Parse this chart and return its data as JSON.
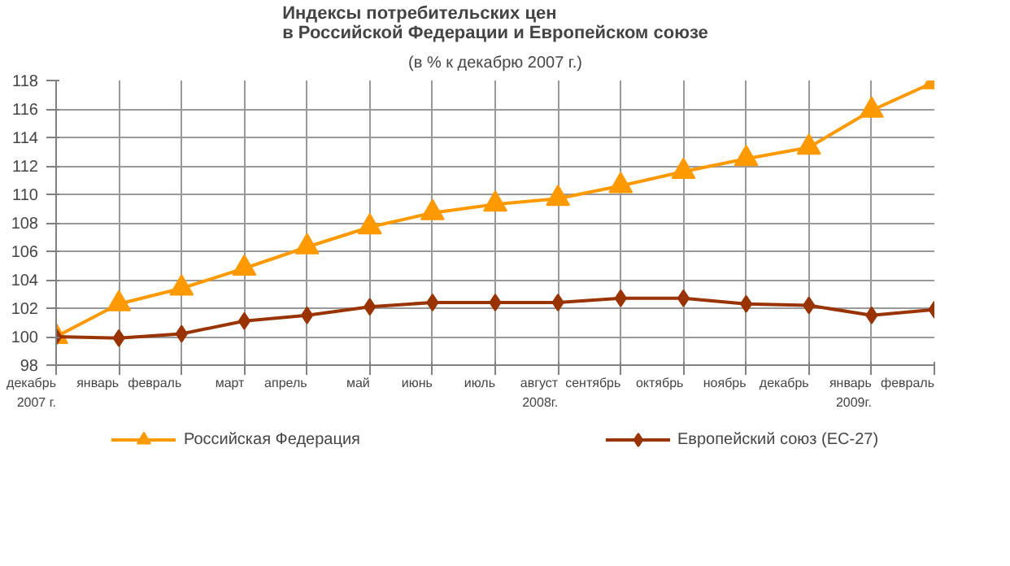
{
  "chart_data": {
    "type": "line",
    "title": "Индексы потребительских цен\nв Российской Федерации и Европейском союзе",
    "subtitle": "(в % к декабрю 2007 г.)",
    "categories": [
      "декабрь\n2007 г.",
      "январь",
      "февраль",
      "март",
      "апрель",
      "май",
      "июнь",
      "июль",
      "август\n2008г.",
      "сентябрь",
      "октябрь",
      "ноябрь",
      "декабрь",
      "январь\n2009г.",
      "февраль"
    ],
    "series": [
      {
        "name": "Российская Федерация",
        "color": "#ff9900",
        "marker": "triangle",
        "values": [
          100,
          102.3,
          103.4,
          104.8,
          106.3,
          107.7,
          108.7,
          109.3,
          109.7,
          110.6,
          111.6,
          112.5,
          113.3,
          115.9,
          117.9
        ]
      },
      {
        "name": "Европейский союз (ЕС-27)",
        "color": "#993300",
        "marker": "diamond",
        "values": [
          100,
          99.9,
          100.2,
          101.1,
          101.5,
          102.1,
          102.4,
          102.4,
          102.4,
          102.7,
          102.7,
          102.3,
          102.2,
          101.5,
          101.9
        ]
      }
    ],
    "ylim": [
      98,
      118
    ],
    "yticks": [
      98,
      100,
      102,
      104,
      106,
      108,
      110,
      112,
      114,
      116,
      118
    ],
    "grid": true,
    "legend": "bottom",
    "line_style": "solid"
  }
}
